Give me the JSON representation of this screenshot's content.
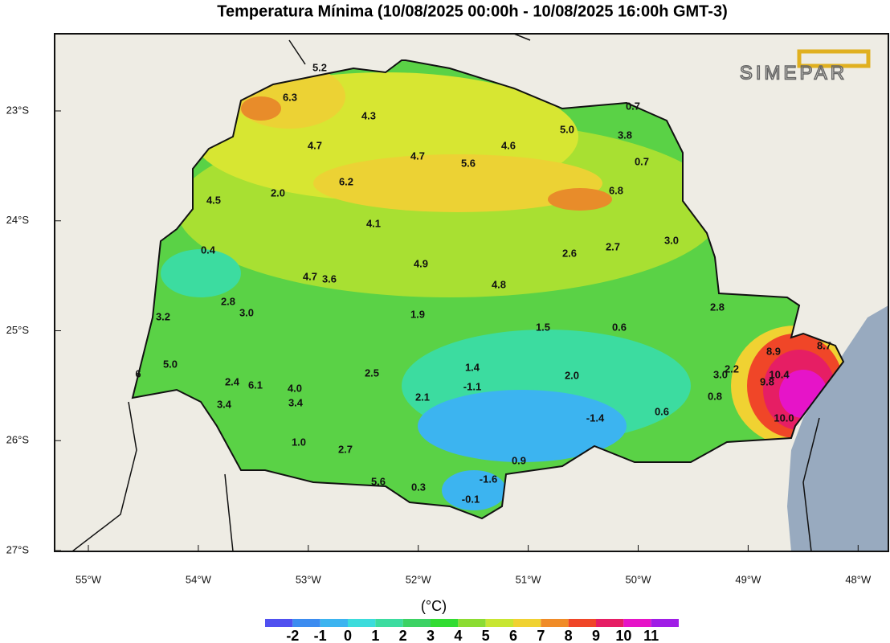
{
  "header": {
    "title": "Temperatura Mínima (10/08/2025 00:00h - 10/08/2025 16:00h GMT-3)"
  },
  "logo": "SIMEPAR",
  "lat_labels": [
    "23°S",
    "24°S",
    "25°S",
    "26°S",
    "27°S"
  ],
  "lon_labels": [
    "55°W",
    "54°W",
    "53°W",
    "52°W",
    "51°W",
    "50°W",
    "49°W",
    "48°W"
  ],
  "stations": [
    "6.3",
    "5.2",
    "4.3",
    "0.7",
    "5.0",
    "3.8",
    "4.7",
    "4.7",
    "4.6",
    "5.6",
    "0.7",
    "6.2",
    "6.8",
    "4.5",
    "2.0",
    "4.1",
    "3.0",
    "0.4",
    "2.6",
    "2.7",
    "4.9",
    "4.7",
    "3.6",
    "4.8",
    "2.8",
    "3.0",
    "2.8",
    "3.2",
    "1.9",
    "1.5",
    "0.6",
    "8.9",
    "8.7",
    "5.0",
    "1.4",
    "2.5",
    "2.0",
    "2.2",
    "3.0",
    "10.4",
    "6",
    "2.4",
    "6.1",
    "4.0",
    "-1.1",
    "9.8",
    "2.1",
    "0.8",
    "3.4",
    "3.4",
    "-1.4",
    "0.6",
    "10.0",
    "1.0",
    "2.7",
    "0.9",
    "5.6",
    "0.3",
    "-1.6",
    "-0.1"
  ],
  "colorbar": {
    "unit": "(°C)",
    "colors": [
      "#5050f0",
      "#3c8cf0",
      "#3cb4f0",
      "#3cdcdc",
      "#3cdca0",
      "#3cd264",
      "#32dc32",
      "#8cdc32",
      "#c8e632",
      "#f0d232",
      "#f08c28",
      "#f04628",
      "#e61e64",
      "#e614c8",
      "#a01ee6"
    ],
    "labels": [
      -2,
      -1,
      0,
      1,
      2,
      3,
      4,
      5,
      6,
      7,
      8,
      9,
      10,
      11
    ]
  }
}
